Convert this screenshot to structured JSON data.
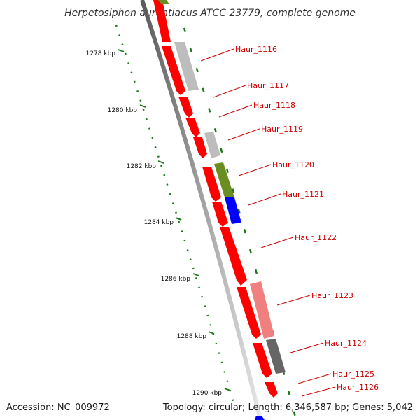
{
  "title": "Herpetosiphon aurantiacus ATCC 23779, complete genome",
  "footer": {
    "accession": "Accession: NC_009972",
    "summary": "Topology: circular; Length: 6,346,587 bp; Genes: 5,042"
  },
  "ticks": [
    "1278 kbp",
    "1280 kbp",
    "1282 kbp",
    "1284 kbp",
    "1286 kbp",
    "1288 kbp",
    "1290 kbp"
  ],
  "genes": [
    {
      "name": "Haur_1116"
    },
    {
      "name": "Haur_1117"
    },
    {
      "name": "Haur_1118"
    },
    {
      "name": "Haur_1119"
    },
    {
      "name": "Haur_1120"
    },
    {
      "name": "Haur_1121"
    },
    {
      "name": "Haur_1122"
    },
    {
      "name": "Haur_1123"
    },
    {
      "name": "Haur_1124"
    },
    {
      "name": "Haur_1125"
    },
    {
      "name": "Haur_1126"
    }
  ],
  "colors": {
    "cds_red": "#ff0000",
    "gray_light": "#bdbdbd",
    "olive": "#6b8e23",
    "blue": "#0000ff",
    "pink": "#f08080",
    "gray_dark": "#666666",
    "tick_green": "#1a7a1a",
    "label_red": "#cc0000"
  }
}
